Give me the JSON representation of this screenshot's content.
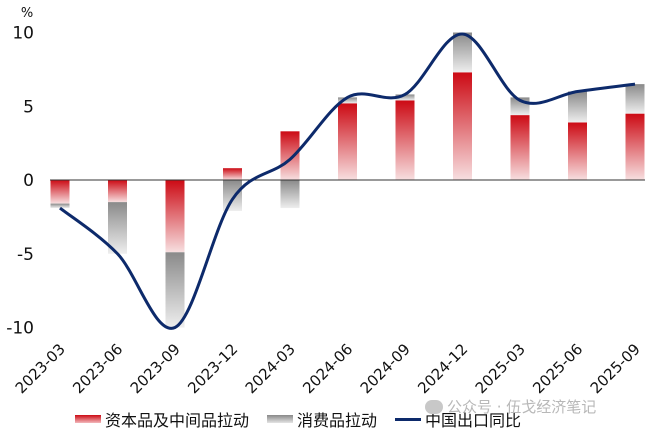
{
  "chart_data": {
    "type": "bar",
    "stacked": true,
    "title": "",
    "xlabel": "",
    "ylabel": "%",
    "ylim": [
      -10,
      10
    ],
    "yticks": [
      10,
      5,
      0,
      -5,
      -10
    ],
    "grid": false,
    "legend_position": "bottom",
    "categories": [
      "2023-03",
      "2023-06",
      "2023-09",
      "2023-12",
      "2024-03",
      "2024-06",
      "2024-09",
      "2024-12",
      "2025-03",
      "2025-06",
      "2025-09"
    ],
    "series": [
      {
        "name": "资本品及中间品拉动",
        "type": "bar",
        "color": "#cc0a14",
        "values": [
          -1.6,
          -1.5,
          -4.9,
          0.8,
          3.3,
          5.2,
          5.4,
          7.3,
          4.4,
          3.9,
          4.5
        ]
      },
      {
        "name": "消费品拉动",
        "type": "bar",
        "color": "#8a8a8a",
        "values": [
          -0.3,
          -3.5,
          -5.1,
          -2.1,
          -1.9,
          0.4,
          0.4,
          2.7,
          1.2,
          2.1,
          2.0
        ]
      },
      {
        "name": "中国出口同比",
        "type": "line",
        "color": "#0d2a6b",
        "values": [
          -1.9,
          -5.0,
          -10.0,
          -1.3,
          1.4,
          5.6,
          5.8,
          9.9,
          5.4,
          6.0,
          6.5
        ]
      }
    ]
  },
  "axis": {
    "unit": "%"
  },
  "legend": {
    "items": [
      {
        "label": "资本品及中间品拉动"
      },
      {
        "label": "消费品拉动"
      },
      {
        "label": "中国出口同比"
      }
    ]
  },
  "watermark": {
    "text": "公众号 · 伍戈经济笔记"
  }
}
